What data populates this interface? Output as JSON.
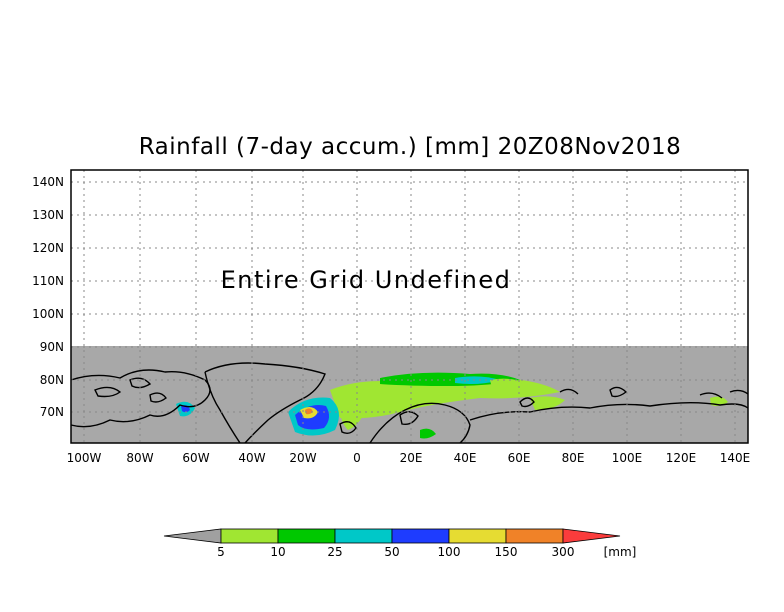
{
  "title": "Rainfall (7-day accum.) [mm] 20Z08Nov2018",
  "undefined_message": "Entire Grid Undefined",
  "y_ticks": [
    "140N",
    "130N",
    "120N",
    "110N",
    "100N",
    "90N",
    "80N",
    "70N"
  ],
  "x_ticks": [
    "100W",
    "80W",
    "60W",
    "40W",
    "20W",
    "0",
    "20E",
    "40E",
    "60E",
    "80E",
    "100E",
    "120E",
    "140E"
  ],
  "colorbar": {
    "labels": [
      "5",
      "10",
      "25",
      "50",
      "100",
      "150",
      "300"
    ],
    "unit": "[mm]",
    "colors": [
      "#a0a0a0",
      "#a0e632",
      "#00c800",
      "#00c8c8",
      "#1e3cff",
      "#e6dc32",
      "#f08228",
      "#fa3c3c"
    ]
  },
  "colors": {
    "land_undefined": "#a8a8a8",
    "coast": "#000000",
    "grid": "#888888"
  }
}
